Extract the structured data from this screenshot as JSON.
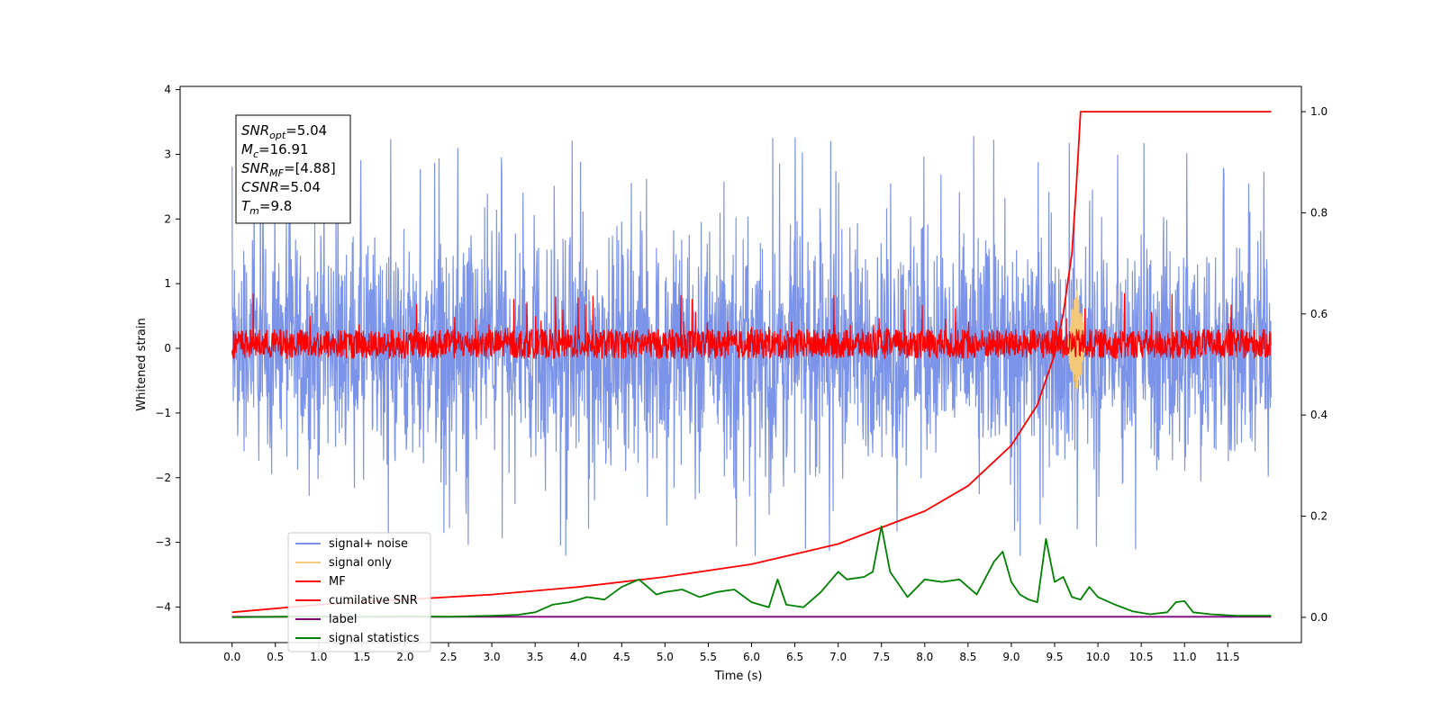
{
  "chart_data": {
    "type": "line",
    "xlabel": "Time (s)",
    "ylabel_left": "Whitened strain",
    "xlim": [
      -0.6,
      12.35
    ],
    "ylim_left": [
      -4.55,
      4.05
    ],
    "ylim_right": [
      -0.05,
      1.05
    ],
    "x_ticks": [
      0.0,
      0.5,
      1.0,
      1.5,
      2.0,
      2.5,
      3.0,
      3.5,
      4.0,
      4.5,
      5.0,
      5.5,
      6.0,
      6.5,
      7.0,
      7.5,
      8.0,
      8.5,
      9.0,
      9.5,
      10.0,
      10.5,
      11.0,
      11.5
    ],
    "x_tick_labels": [
      "0.0",
      "0.5",
      "1.0",
      "1.5",
      "2.0",
      "2.5",
      "3.0",
      "3.5",
      "4.0",
      "4.5",
      "5.0",
      "5.5",
      "6.0",
      "6.5",
      "7.0",
      "7.5",
      "8.0",
      "8.5",
      "9.0",
      "9.5",
      "10.0",
      "10.5",
      "11.0",
      "11.5"
    ],
    "y_left_ticks": [
      4,
      3,
      2,
      1,
      0,
      -1,
      -2,
      -3,
      -4
    ],
    "y_left_tick_labels": [
      "4",
      "3",
      "2",
      "1",
      "0",
      "−1",
      "−2",
      "−3",
      "−4"
    ],
    "y_right_ticks": [
      1.0,
      0.8,
      0.6,
      0.4,
      0.2,
      0.0
    ],
    "y_right_tick_labels": [
      "1.0",
      "0.8",
      "0.6",
      "0.4",
      "0.2",
      "0.0"
    ],
    "series": [
      {
        "name": "signal+ noise",
        "color": "#7b93e8",
        "axis": "left",
        "style": "noise",
        "x_range": [
          0,
          12
        ],
        "mean": 0.0,
        "amplitude_range": [
          -3.2,
          3.7
        ]
      },
      {
        "name": "signal only",
        "color": "#f5c97a",
        "axis": "left",
        "style": "burst",
        "x_range": [
          9.65,
          9.85
        ],
        "peak": 1.0,
        "trough": -0.7
      },
      {
        "name": "MF",
        "color": "#ff0000",
        "axis": "left",
        "style": "noise",
        "x_range": [
          0,
          12
        ],
        "mean": 0.0,
        "amplitude_range": [
          -0.35,
          0.95
        ]
      },
      {
        "name": "cumilative SNR",
        "color": "#ff0000",
        "axis": "right",
        "x": [
          0.0,
          1.0,
          2.0,
          3.0,
          4.0,
          5.0,
          6.0,
          7.0,
          8.0,
          8.5,
          9.0,
          9.3,
          9.5,
          9.6,
          9.7,
          9.75,
          9.8,
          12.0
        ],
        "values": [
          0.01,
          0.025,
          0.035,
          0.045,
          0.06,
          0.08,
          0.105,
          0.145,
          0.21,
          0.26,
          0.34,
          0.42,
          0.52,
          0.6,
          0.72,
          0.85,
          1.0,
          1.0
        ]
      },
      {
        "name": "label",
        "color": "#800080",
        "axis": "left",
        "x": [
          0.0,
          12.0
        ],
        "values": [
          -4.15,
          -4.15
        ]
      },
      {
        "name": "signal statistics",
        "color": "#008000",
        "axis": "right",
        "x": [
          0.0,
          0.5,
          1.0,
          1.5,
          2.0,
          2.5,
          3.0,
          3.3,
          3.5,
          3.7,
          3.9,
          4.1,
          4.3,
          4.5,
          4.7,
          4.9,
          5.0,
          5.2,
          5.4,
          5.6,
          5.8,
          6.0,
          6.2,
          6.3,
          6.4,
          6.6,
          6.8,
          7.0,
          7.1,
          7.3,
          7.4,
          7.5,
          7.6,
          7.8,
          8.0,
          8.2,
          8.4,
          8.6,
          8.8,
          8.9,
          9.0,
          9.1,
          9.2,
          9.3,
          9.4,
          9.5,
          9.6,
          9.7,
          9.8,
          9.9,
          10.0,
          10.2,
          10.4,
          10.6,
          10.8,
          10.9,
          11.0,
          11.1,
          11.3,
          11.6,
          11.9,
          12.0
        ],
        "values": [
          0.0,
          0.001,
          0.002,
          0.001,
          0.002,
          0.001,
          0.003,
          0.005,
          0.01,
          0.025,
          0.03,
          0.04,
          0.035,
          0.06,
          0.075,
          0.045,
          0.05,
          0.055,
          0.04,
          0.05,
          0.055,
          0.03,
          0.02,
          0.075,
          0.025,
          0.02,
          0.05,
          0.09,
          0.075,
          0.08,
          0.09,
          0.18,
          0.09,
          0.04,
          0.075,
          0.07,
          0.075,
          0.045,
          0.11,
          0.13,
          0.07,
          0.045,
          0.035,
          0.03,
          0.155,
          0.07,
          0.08,
          0.04,
          0.035,
          0.06,
          0.04,
          0.025,
          0.012,
          0.006,
          0.01,
          0.03,
          0.032,
          0.01,
          0.006,
          0.003,
          0.003,
          0.003
        ]
      }
    ],
    "legend": {
      "placement": "lower-left",
      "entries": [
        {
          "label": "signal+ noise",
          "color": "#7b93e8"
        },
        {
          "label": "signal only",
          "color": "#f5c97a"
        },
        {
          "label": "MF",
          "color": "#ff0000"
        },
        {
          "label": "cumilative SNR",
          "color": "#ff0000"
        },
        {
          "label": "label",
          "color": "#800080"
        },
        {
          "label": "signal statistics",
          "color": "#008000"
        }
      ]
    },
    "annotation": {
      "placement": "top-left",
      "lines": [
        {
          "symbol": "SNR",
          "sub": "opt",
          "value": "=5.04"
        },
        {
          "symbol": "M",
          "sub": "c",
          "value": "=16.91"
        },
        {
          "symbol": "SNR",
          "sub": "MF",
          "value": "=[4.88]"
        },
        {
          "symbol": "CSNR",
          "sub": "",
          "value": "=5.04"
        },
        {
          "symbol": "T",
          "sub": "m",
          "value": "=9.8"
        }
      ]
    }
  }
}
